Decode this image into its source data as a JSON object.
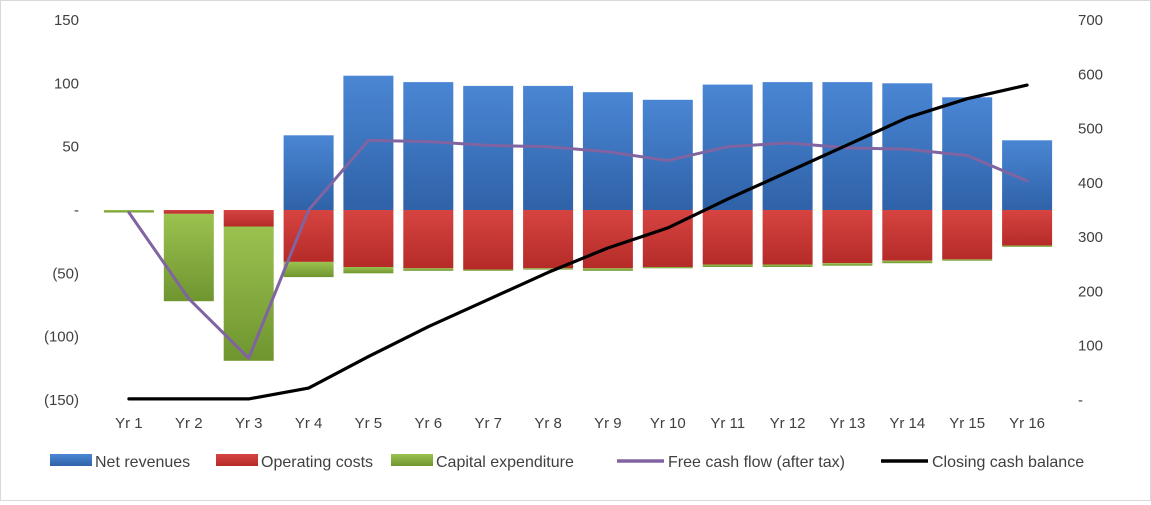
{
  "chart_data": {
    "type": "combo-bar-line",
    "categories": [
      "Yr 1",
      "Yr 2",
      "Yr 3",
      "Yr 4",
      "Yr 5",
      "Yr 6",
      "Yr 7",
      "Yr 8",
      "Yr 9",
      "Yr 10",
      "Yr 11",
      "Yr 12",
      "Yr 13",
      "Yr 14",
      "Yr 15",
      "Yr 16"
    ],
    "left_axis": {
      "min": -150,
      "max": 150,
      "ticks": [
        150,
        100,
        50,
        0,
        -50,
        -100,
        -150
      ],
      "tick_labels": [
        "150",
        "100",
        "50",
        "-",
        "(50)",
        "(100)",
        "(150)"
      ]
    },
    "right_axis": {
      "min": 0,
      "max": 700,
      "ticks": [
        700,
        600,
        500,
        400,
        300,
        200,
        100,
        0
      ],
      "tick_labels": [
        "700",
        "600",
        "500",
        "400",
        "300",
        "200",
        "100",
        "-"
      ]
    },
    "grid": false,
    "legend_position": "bottom",
    "stacked_bars": [
      {
        "name": "Net revenues",
        "color": "#3c75c2",
        "values": [
          0,
          0,
          0,
          59,
          106,
          101,
          98,
          98,
          93,
          87,
          99,
          101,
          101,
          100,
          89,
          55
        ]
      },
      {
        "name": "Operating costs",
        "color": "#c83431",
        "values": [
          0,
          -3,
          -13,
          -41,
          -45,
          -46,
          -47,
          -46,
          -46,
          -45,
          -43,
          -43,
          -42,
          -40,
          -39,
          -28
        ]
      },
      {
        "name": "Capital expenditure",
        "color": "#86b040",
        "values": [
          -2,
          -69,
          -106,
          -12,
          -5,
          -2,
          -1,
          -1,
          -2,
          -1,
          -2,
          -2,
          -2,
          -2,
          -1,
          -1
        ]
      }
    ],
    "lines": [
      {
        "name": "Free cash flow (after tax)",
        "color": "#8064a2",
        "axis": "left",
        "values": [
          -2,
          -70,
          -117,
          0,
          55,
          54,
          51,
          50,
          46,
          39,
          50,
          53,
          49,
          48,
          43,
          23
        ]
      },
      {
        "name": "Closing cash balance",
        "color": "#000000",
        "axis": "right",
        "values": [
          2,
          2,
          2,
          22,
          80,
          135,
          185,
          235,
          280,
          317,
          370,
          420,
          470,
          520,
          555,
          580
        ]
      }
    ],
    "legend": [
      {
        "label": "Net revenues",
        "kind": "bar",
        "color": "#3c75c2"
      },
      {
        "label": "Operating costs",
        "kind": "bar",
        "color": "#c83431"
      },
      {
        "label": "Capital expenditure",
        "kind": "bar",
        "color": "#86b040"
      },
      {
        "label": "Free cash flow (after tax)",
        "kind": "line",
        "color": "#8064a2"
      },
      {
        "label": "Closing cash balance",
        "kind": "line",
        "color": "#000000"
      }
    ]
  }
}
